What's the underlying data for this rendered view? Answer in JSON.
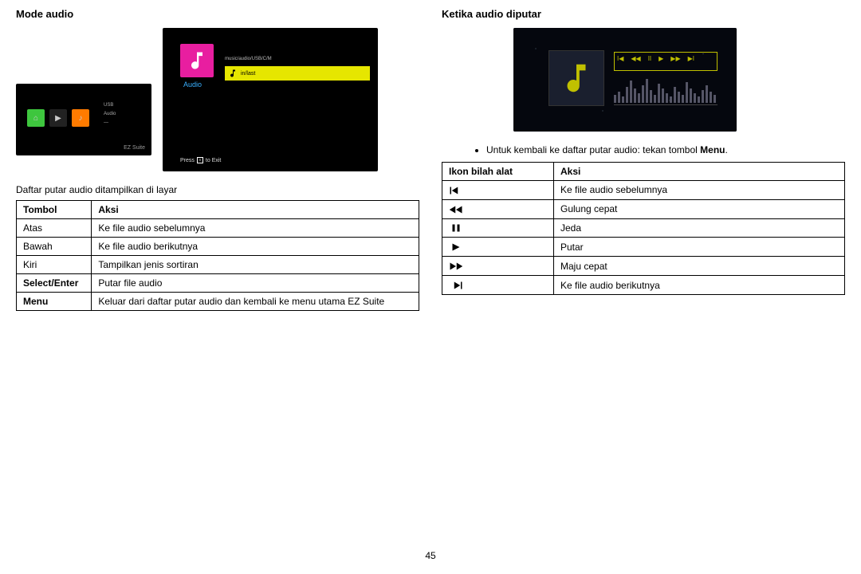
{
  "page_number": "45",
  "left": {
    "heading": "Mode audio",
    "caption": "Daftar putar audio ditampilkan di layar",
    "ez_suite": {
      "label": "EZ Suite",
      "menu": [
        "USB",
        "Audio",
        "—"
      ]
    },
    "audio_list": {
      "title": "Audio",
      "path": "music/audio/USB/C/M",
      "item": "in/last",
      "exit_pre": "Press",
      "exit_post": "to Exit"
    },
    "table": {
      "headers": [
        "Tombol",
        "Aksi"
      ],
      "rows": [
        [
          "Atas",
          "Ke file audio sebelumnya",
          false
        ],
        [
          "Bawah",
          "Ke file audio berikutnya",
          false
        ],
        [
          "Kiri",
          "Tampilkan jenis sortiran",
          false
        ],
        [
          "Select/Enter",
          "Putar file audio",
          true
        ],
        [
          "Menu",
          "Keluar dari daftar putar audio dan kembali ke menu utama EZ Suite",
          true
        ]
      ]
    }
  },
  "right": {
    "heading": "Ketika audio diputar",
    "note_pre": "Untuk kembali ke daftar putar audio: tekan tombol ",
    "note_bold": "Menu",
    "note_post": ".",
    "table": {
      "headers": [
        "Ikon bilah alat",
        "Aksi"
      ],
      "rows": [
        {
          "icon": "prev",
          "action": "Ke file audio sebelumnya"
        },
        {
          "icon": "rew",
          "action": "Gulung cepat"
        },
        {
          "icon": "pause",
          "action": "Jeda"
        },
        {
          "icon": "play",
          "action": "Putar"
        },
        {
          "icon": "ff",
          "action": "Maju cepat"
        },
        {
          "icon": "next",
          "action": "Ke file audio berikutnya"
        }
      ]
    },
    "play_bars": [
      10,
      14,
      8,
      20,
      28,
      18,
      12,
      22,
      30,
      16,
      10,
      24,
      18,
      12,
      8,
      20,
      14,
      10,
      26,
      18,
      12,
      8,
      16,
      22,
      14,
      10
    ]
  },
  "colors": {
    "magenta": "#e81ea0",
    "yellow": "#e6e600",
    "cyan": "#39b0ff"
  }
}
